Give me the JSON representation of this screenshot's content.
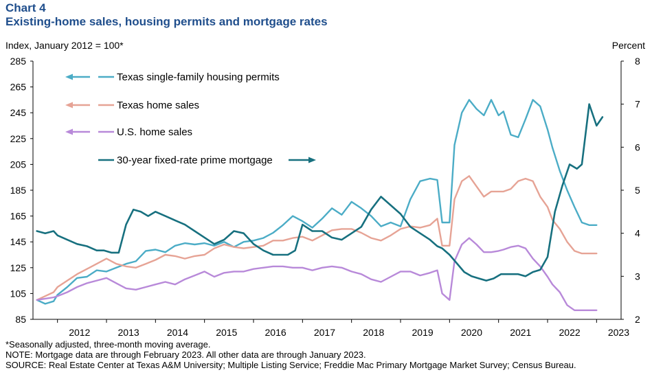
{
  "header": {
    "chart_label": "Chart 4",
    "title": "Existing-home sales, housing permits and mortgage rates"
  },
  "axes": {
    "left_title": "Index, January 2012 = 100*",
    "right_title": "Percent"
  },
  "notes": {
    "footnote": "*Seasonally adjusted, three-month moving average.",
    "note": "NOTE: Mortgage data are through February 2023. All other data are through January 2023.",
    "source": "SOURCE: Real Estate Center at Texas A&M University; Multiple Listing Service; Freddie Mac Primary Mortgage Market Survey; Census Bureau."
  },
  "colors": {
    "tx_permits": "#4bacc6",
    "tx_sales": "#e6a395",
    "us_sales": "#b889d9",
    "mortgage": "#17707f"
  },
  "chart_data": {
    "type": "line",
    "title": "Existing-home sales, housing permits and mortgage rates",
    "xlabel": "",
    "ylabel": "Index, January 2012 = 100*",
    "y2label": "Percent",
    "xlim": [
      2011.5,
      2023.5
    ],
    "ylim": [
      85,
      285
    ],
    "y2lim": [
      2,
      8
    ],
    "xticks": [
      "2012",
      "2013",
      "2014",
      "2015",
      "2016",
      "2017",
      "2018",
      "2019",
      "2020",
      "2021",
      "2022",
      "2023"
    ],
    "yticks": [
      85,
      105,
      125,
      145,
      165,
      185,
      205,
      225,
      245,
      265,
      285
    ],
    "y2ticks": [
      2,
      3,
      4,
      5,
      6,
      7,
      8
    ],
    "grid": false,
    "legend_position": "top-left",
    "series": [
      {
        "name": "Texas single-family housing permits",
        "axis": "left",
        "legend_arrow": "left",
        "x": [
          2011.58,
          2011.75,
          2011.92,
          2012.0,
          2012.2,
          2012.4,
          2012.6,
          2012.8,
          2013.0,
          2013.2,
          2013.4,
          2013.6,
          2013.8,
          2014.0,
          2014.2,
          2014.4,
          2014.6,
          2014.8,
          2015.0,
          2015.2,
          2015.4,
          2015.6,
          2015.8,
          2016.0,
          2016.2,
          2016.4,
          2016.6,
          2016.8,
          2017.0,
          2017.2,
          2017.4,
          2017.6,
          2017.8,
          2018.0,
          2018.2,
          2018.4,
          2018.6,
          2018.8,
          2019.0,
          2019.2,
          2019.4,
          2019.6,
          2019.75,
          2019.85,
          2020.0,
          2020.1,
          2020.25,
          2020.4,
          2020.55,
          2020.7,
          2020.85,
          2021.0,
          2021.1,
          2021.25,
          2021.4,
          2021.55,
          2021.7,
          2021.85,
          2022.0,
          2022.1,
          2022.25,
          2022.4,
          2022.55,
          2022.7,
          2022.85,
          2023.0
        ],
        "y": [
          100,
          97,
          99,
          104,
          110,
          117,
          118,
          123,
          122,
          125,
          128,
          130,
          138,
          139,
          137,
          142,
          144,
          143,
          144,
          142,
          145,
          141,
          145,
          146,
          148,
          152,
          158,
          165,
          161,
          156,
          163,
          171,
          166,
          176,
          171,
          165,
          157,
          160,
          157,
          178,
          192,
          194,
          193,
          160,
          160,
          220,
          245,
          255,
          248,
          243,
          255,
          243,
          246,
          228,
          226,
          240,
          255,
          250,
          232,
          218,
          200,
          185,
          172,
          160,
          158,
          158
        ]
      },
      {
        "name": "Texas home sales",
        "axis": "left",
        "legend_arrow": "left",
        "x": [
          2011.58,
          2011.75,
          2011.92,
          2012.0,
          2012.2,
          2012.4,
          2012.6,
          2012.8,
          2013.0,
          2013.2,
          2013.4,
          2013.6,
          2013.8,
          2014.0,
          2014.2,
          2014.4,
          2014.6,
          2014.8,
          2015.0,
          2015.2,
          2015.4,
          2015.6,
          2015.8,
          2016.0,
          2016.2,
          2016.4,
          2016.6,
          2016.8,
          2017.0,
          2017.2,
          2017.4,
          2017.6,
          2017.8,
          2018.0,
          2018.2,
          2018.4,
          2018.6,
          2018.8,
          2019.0,
          2019.2,
          2019.4,
          2019.6,
          2019.75,
          2019.85,
          2020.0,
          2020.1,
          2020.25,
          2020.4,
          2020.55,
          2020.7,
          2020.85,
          2021.0,
          2021.1,
          2021.25,
          2021.4,
          2021.55,
          2021.7,
          2021.85,
          2022.0,
          2022.1,
          2022.25,
          2022.4,
          2022.55,
          2022.7,
          2022.85,
          2023.0
        ],
        "y": [
          100,
          103,
          106,
          110,
          115,
          120,
          124,
          128,
          132,
          128,
          126,
          125,
          128,
          131,
          135,
          134,
          132,
          134,
          135,
          140,
          143,
          141,
          140,
          141,
          142,
          146,
          146,
          148,
          149,
          146,
          150,
          154,
          155,
          155,
          152,
          148,
          146,
          150,
          155,
          157,
          156,
          158,
          163,
          142,
          142,
          178,
          192,
          196,
          188,
          180,
          184,
          184,
          184,
          186,
          192,
          194,
          192,
          180,
          172,
          162,
          155,
          145,
          138,
          136,
          136,
          136
        ]
      },
      {
        "name": "U.S. home sales",
        "axis": "left",
        "legend_arrow": "left",
        "x": [
          2011.58,
          2011.75,
          2011.92,
          2012.0,
          2012.2,
          2012.4,
          2012.6,
          2012.8,
          2013.0,
          2013.2,
          2013.4,
          2013.6,
          2013.8,
          2014.0,
          2014.2,
          2014.4,
          2014.6,
          2014.8,
          2015.0,
          2015.2,
          2015.4,
          2015.6,
          2015.8,
          2016.0,
          2016.2,
          2016.4,
          2016.6,
          2016.8,
          2017.0,
          2017.2,
          2017.4,
          2017.6,
          2017.8,
          2018.0,
          2018.2,
          2018.4,
          2018.6,
          2018.8,
          2019.0,
          2019.2,
          2019.4,
          2019.6,
          2019.75,
          2019.85,
          2020.0,
          2020.1,
          2020.25,
          2020.4,
          2020.55,
          2020.7,
          2020.85,
          2021.0,
          2021.1,
          2021.25,
          2021.4,
          2021.55,
          2021.7,
          2021.85,
          2022.0,
          2022.1,
          2022.25,
          2022.4,
          2022.55,
          2022.7,
          2022.85,
          2023.0
        ],
        "y": [
          100,
          101,
          102,
          103,
          106,
          110,
          113,
          115,
          117,
          113,
          109,
          108,
          110,
          112,
          114,
          112,
          116,
          119,
          122,
          118,
          121,
          122,
          122,
          124,
          125,
          126,
          126,
          125,
          125,
          123,
          125,
          126,
          125,
          122,
          120,
          116,
          114,
          118,
          122,
          122,
          119,
          121,
          123,
          105,
          100,
          130,
          143,
          148,
          143,
          137,
          137,
          138,
          139,
          141,
          142,
          140,
          132,
          126,
          118,
          112,
          106,
          96,
          92,
          92,
          92,
          92
        ]
      },
      {
        "name": "30-year fixed-rate prime mortgage",
        "axis": "right",
        "legend_arrow": "right",
        "x": [
          2011.58,
          2011.75,
          2011.92,
          2012.0,
          2012.2,
          2012.4,
          2012.6,
          2012.8,
          2012.95,
          2013.1,
          2013.25,
          2013.4,
          2013.55,
          2013.7,
          2013.85,
          2014.0,
          2014.2,
          2014.4,
          2014.6,
          2014.8,
          2015.0,
          2015.2,
          2015.4,
          2015.6,
          2015.8,
          2016.0,
          2016.2,
          2016.4,
          2016.55,
          2016.7,
          2016.85,
          2017.0,
          2017.2,
          2017.4,
          2017.6,
          2017.8,
          2018.0,
          2018.2,
          2018.4,
          2018.6,
          2018.8,
          2019.0,
          2019.2,
          2019.4,
          2019.6,
          2019.75,
          2019.85,
          2020.0,
          2020.15,
          2020.3,
          2020.45,
          2020.6,
          2020.75,
          2020.9,
          2021.05,
          2021.2,
          2021.4,
          2021.55,
          2021.7,
          2021.85,
          2022.0,
          2022.15,
          2022.3,
          2022.45,
          2022.6,
          2022.7,
          2022.85,
          2023.0,
          2023.12
        ],
        "y": [
          4.05,
          4.0,
          4.05,
          3.95,
          3.85,
          3.75,
          3.7,
          3.6,
          3.6,
          3.55,
          3.55,
          4.2,
          4.55,
          4.5,
          4.4,
          4.5,
          4.4,
          4.3,
          4.2,
          4.05,
          3.9,
          3.75,
          3.85,
          4.05,
          4.0,
          3.75,
          3.6,
          3.5,
          3.5,
          3.5,
          3.6,
          4.2,
          4.05,
          4.05,
          3.9,
          3.85,
          4.0,
          4.15,
          4.55,
          4.85,
          4.65,
          4.45,
          4.15,
          4.0,
          3.85,
          3.7,
          3.65,
          3.5,
          3.3,
          3.1,
          3.0,
          2.95,
          2.9,
          2.95,
          3.05,
          3.05,
          3.05,
          3.0,
          3.1,
          3.15,
          3.45,
          4.5,
          5.1,
          5.6,
          5.5,
          5.6,
          7.0,
          6.5,
          6.7
        ]
      }
    ]
  }
}
